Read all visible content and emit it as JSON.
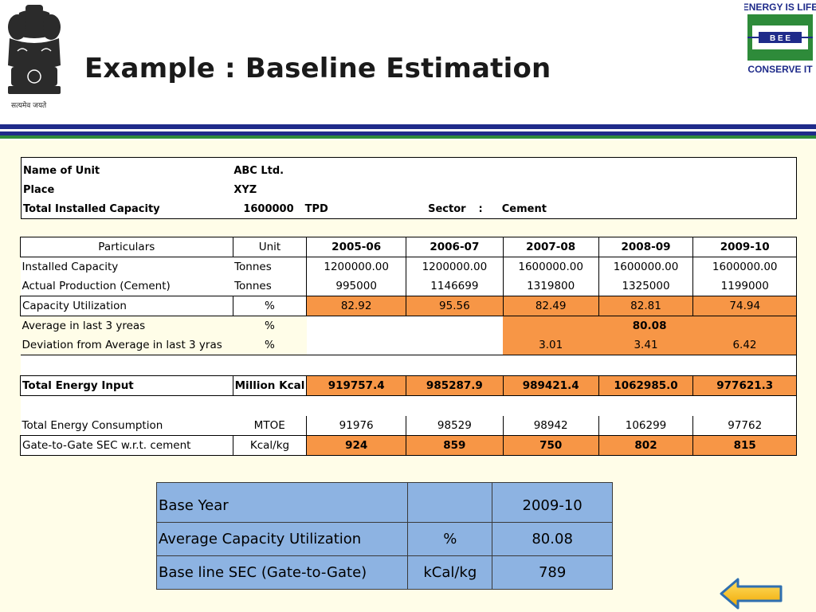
{
  "slide": {
    "title": "Example : Baseline Estimation",
    "emblem_caption": "सत्यमेव जयते",
    "logo": {
      "top": "ENERGY IS LIFE",
      "middle": "B  E  E",
      "bottom": "CONSERVE IT",
      "icon": "bee-logo-icon"
    },
    "colors": {
      "navy": "#1f2b8a",
      "green": "#2e8b3a",
      "orange": "#f79646",
      "blue": "#8db3e2",
      "background": "#fffde8"
    }
  },
  "unit_info": {
    "name_label": "Name of Unit",
    "name_value": "ABC Ltd.",
    "place_label": "Place",
    "place_value": "XYZ",
    "capacity_label": "Total Installed Capacity",
    "capacity_value": "1600000",
    "capacity_unit": "TPD",
    "sector_label": "Sector",
    "sector_sep": ":",
    "sector_value": "Cement"
  },
  "main_table": {
    "headers": [
      "Particulars",
      "Unit",
      "2005-06",
      "2006-07",
      "2007-08",
      "2008-09",
      "2009-10"
    ],
    "installed_capacity": {
      "label": "Installed Capacity",
      "unit": "Tonnes",
      "values": [
        "1200000.00",
        "1200000.00",
        "1600000.00",
        "1600000.00",
        "1600000.00"
      ]
    },
    "actual_production": {
      "label": "Actual Production (Cement)",
      "unit": "Tonnes",
      "values": [
        "995000",
        "1146699",
        "1319800",
        "1325000",
        "1199000"
      ]
    },
    "capacity_utilization": {
      "label": "Capacity Utilization",
      "unit": "%",
      "values": [
        "82.92",
        "95.56",
        "82.49",
        "82.81",
        "74.94"
      ]
    },
    "average_last_3": {
      "label": "Average in last 3 yreas",
      "unit": "%",
      "value": "80.08"
    },
    "deviation": {
      "label": "Deviation from Average in last 3 yras",
      "unit": "%",
      "values": [
        "3.01",
        "3.41",
        "6.42"
      ]
    },
    "total_energy_input": {
      "label": "Total Energy Input",
      "unit": "Million Kcal",
      "values": [
        "919757.4",
        "985287.9",
        "989421.4",
        "1062985.0",
        "977621.3"
      ]
    },
    "total_energy_consumption": {
      "label": "Total Energy Consumption",
      "unit": "MTOE",
      "values": [
        "91976",
        "98529",
        "98942",
        "106299",
        "97762"
      ]
    },
    "gtg_sec": {
      "label": "Gate-to-Gate SEC w.r.t. cement",
      "unit": "Kcal/kg",
      "values": [
        "924",
        "859",
        "750",
        "802",
        "815"
      ]
    }
  },
  "summary": {
    "rows": [
      {
        "label": "Base Year",
        "unit": "",
        "value": "2009-10"
      },
      {
        "label": "Average Capacity Utilization",
        "unit": "%",
        "value": "80.08"
      },
      {
        "label": "Base line SEC (Gate-to-Gate)",
        "unit": "kCal/kg",
        "value": "789"
      }
    ]
  },
  "nav": {
    "back_icon": "left-arrow-icon"
  }
}
